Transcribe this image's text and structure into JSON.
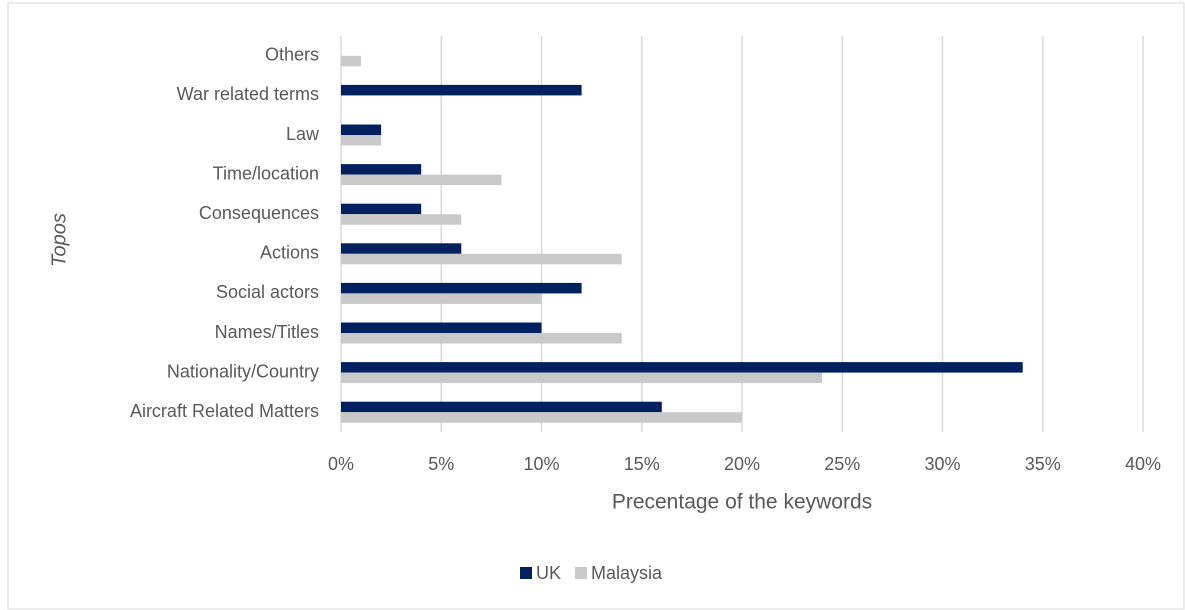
{
  "chart_data": {
    "type": "hbar",
    "y_axis_label": "Topos",
    "x_axis_label": "Precentage of the keywords",
    "categories": [
      "Aircraft Related Matters",
      "Nationality/Country",
      "Names/Titles",
      "Social actors",
      "Actions",
      "Consequences",
      "Time/location",
      "Law",
      "War related terms",
      "Others"
    ],
    "series": [
      {
        "name": "UK",
        "color": "#002060",
        "values": [
          16,
          34,
          10,
          12,
          6,
          4,
          4,
          2,
          12,
          0
        ]
      },
      {
        "name": "Malaysia",
        "color": "#c9c9c9",
        "values": [
          20,
          24,
          14,
          10,
          14,
          6,
          8,
          2,
          0,
          1
        ]
      }
    ],
    "xlim": [
      0,
      40
    ],
    "xticks": [
      {
        "value": 0,
        "label": "0%"
      },
      {
        "value": 5,
        "label": "5%"
      },
      {
        "value": 10,
        "label": "10%"
      },
      {
        "value": 15,
        "label": "15%"
      },
      {
        "value": 20,
        "label": "20%"
      },
      {
        "value": 25,
        "label": "25%"
      },
      {
        "value": 30,
        "label": "30%"
      },
      {
        "value": 35,
        "label": "35%"
      },
      {
        "value": 40,
        "label": "40%"
      }
    ],
    "grid": true,
    "legend": "bottom"
  }
}
